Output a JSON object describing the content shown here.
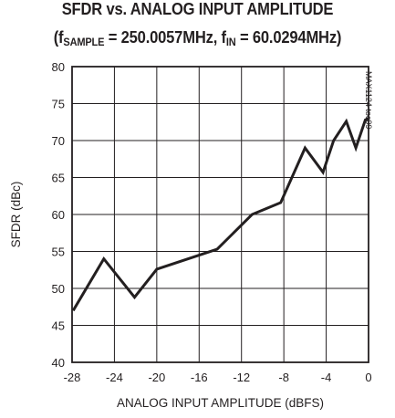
{
  "chart_data": {
    "type": "line",
    "title": "SFDR vs. ANALOG INPUT AMPLITUDE",
    "subtitle": {
      "open": "(f",
      "sub1": "SAMPLE",
      "mid": " = 250.0057MHz, f",
      "sub2": "IN",
      "close": " = 60.0294MHz)"
    },
    "xlabel": "ANALOG INPUT AMPLITUDE (dBFS)",
    "ylabel": "SFDR (dBc)",
    "annotation": "MAX1124 toc09",
    "xlim": [
      -28,
      0
    ],
    "ylim": [
      40,
      80
    ],
    "xticks": [
      -28,
      -24,
      -20,
      -16,
      -12,
      -8,
      -4,
      0
    ],
    "yticks": [
      40,
      45,
      50,
      55,
      60,
      65,
      70,
      75,
      80
    ],
    "xtick_labels": [
      "-28",
      "-24",
      "-20",
      "-16",
      "-12",
      "-8",
      "-4",
      "0"
    ],
    "ytick_labels": [
      "40",
      "45",
      "50",
      "55",
      "60",
      "65",
      "70",
      "75",
      "80"
    ],
    "grid": true,
    "series": [
      {
        "x": [
          -27.9,
          -25.0,
          -22.1,
          -20.0,
          -14.3,
          -11.0,
          -8.3,
          -6.0,
          -4.3,
          -3.3,
          -2.1,
          -1.2,
          -0.3,
          0
        ],
        "y": [
          47.0,
          54.0,
          48.8,
          52.6,
          55.3,
          60.0,
          61.6,
          69.0,
          65.7,
          70.0,
          72.6,
          69.0,
          72.8,
          73.0
        ]
      }
    ]
  }
}
